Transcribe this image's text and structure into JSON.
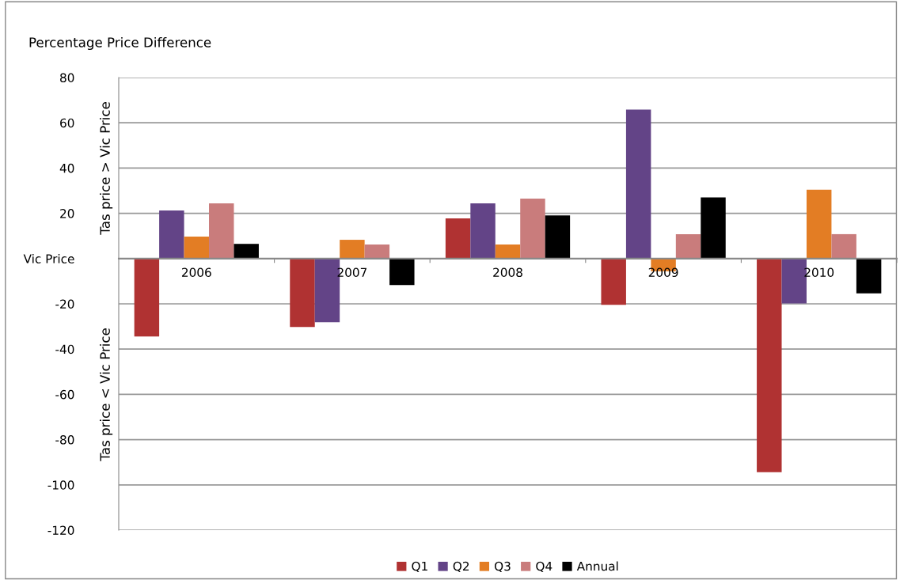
{
  "chart_data": {
    "type": "bar",
    "title": "Percentage Price Difference",
    "categories": [
      "2006",
      "2007",
      "2008",
      "2009",
      "2010"
    ],
    "series": [
      {
        "name": "Q1",
        "color": "#b03232",
        "values": [
          -34.4,
          -30.2,
          17.8,
          -20.4,
          -94.4
        ]
      },
      {
        "name": "Q2",
        "color": "#634487",
        "values": [
          21.3,
          -28.1,
          24.4,
          65.8,
          -19.8
        ]
      },
      {
        "name": "Q3",
        "color": "#e37d24",
        "values": [
          9.7,
          8.3,
          6.2,
          -5.6,
          30.4
        ]
      },
      {
        "name": "Q4",
        "color": "#c97c7c",
        "values": [
          24.4,
          6.2,
          26.5,
          10.8,
          10.8
        ]
      },
      {
        "name": "Annual",
        "color": "#000000",
        "values": [
          6.5,
          -11.7,
          19.1,
          27.0,
          -15.4
        ]
      }
    ],
    "ylim": [
      -120,
      80
    ],
    "yticks": [
      -120,
      -100,
      -80,
      -60,
      -40,
      -20,
      {
        "value": 0,
        "label": "Vic Price"
      },
      20,
      40,
      60,
      80
    ],
    "annotations": [
      "Tas price > Vic Price",
      "Tas price < Vic Price"
    ],
    "grid": "y",
    "legend": "bottom"
  }
}
